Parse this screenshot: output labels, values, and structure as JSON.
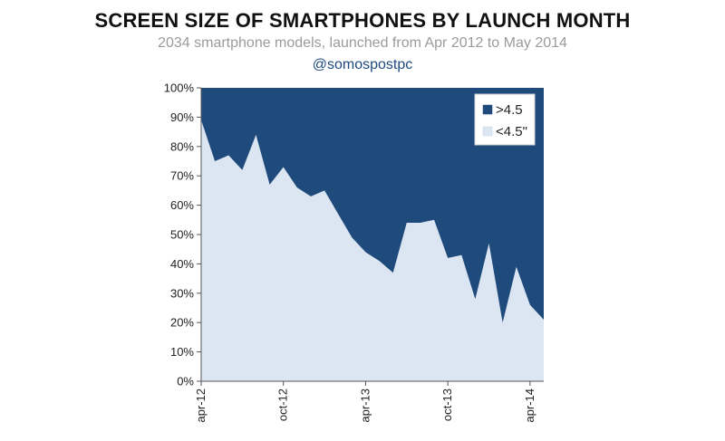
{
  "header": {
    "title": "SCREEN SIZE OF SMARTPHONES BY LAUNCH MONTH",
    "subtitle": "2034 smartphone models, launched from Apr 2012 to May 2014",
    "handle": "@somospostpc"
  },
  "colors": {
    "large_series": "#1f4a7c",
    "small_series": "#dce6f2",
    "axis": "#555555"
  },
  "chart_data": {
    "type": "area",
    "stacked": true,
    "percent": true,
    "x_tick_labels": [
      "apr-12",
      "oct-12",
      "apr-13",
      "oct-13",
      "apr-14"
    ],
    "x_tick_months": [
      "2012-04",
      "2012-10",
      "2013-04",
      "2013-10",
      "2014-04"
    ],
    "y_tick_labels": [
      "0%",
      "10%",
      "20%",
      "30%",
      "40%",
      "50%",
      "60%",
      "70%",
      "80%",
      "90%",
      "100%"
    ],
    "ylim": [
      0,
      100
    ],
    "x": [
      "2012-04",
      "2012-05",
      "2012-06",
      "2012-07",
      "2012-08",
      "2012-09",
      "2012-10",
      "2012-11",
      "2012-12",
      "2013-01",
      "2013-02",
      "2013-03",
      "2013-04",
      "2013-05",
      "2013-06",
      "2013-07",
      "2013-08",
      "2013-09",
      "2013-10",
      "2013-11",
      "2013-12",
      "2014-01",
      "2014-02",
      "2014-03",
      "2014-04",
      "2014-05"
    ],
    "series": [
      {
        "name": "<4.5\"",
        "color": "#dce6f2",
        "values": [
          89,
          75,
          77,
          72,
          84,
          67,
          73,
          66,
          63,
          65,
          57,
          49,
          44,
          41,
          37,
          54,
          54,
          55,
          42,
          43,
          28,
          47,
          20,
          39,
          26,
          21
        ]
      },
      {
        "name": ">4.5",
        "color": "#1f4a7c",
        "values": [
          11,
          25,
          23,
          28,
          16,
          33,
          27,
          34,
          37,
          35,
          43,
          51,
          56,
          59,
          63,
          46,
          46,
          45,
          58,
          57,
          72,
          53,
          80,
          61,
          74,
          79
        ]
      }
    ],
    "legend": {
      "position": "top-right",
      "entries": [
        {
          "label": ">4.5",
          "color": "#1f4a7c"
        },
        {
          "label": "<4.5\"",
          "color": "#dce6f2"
        }
      ]
    },
    "grid": false
  }
}
